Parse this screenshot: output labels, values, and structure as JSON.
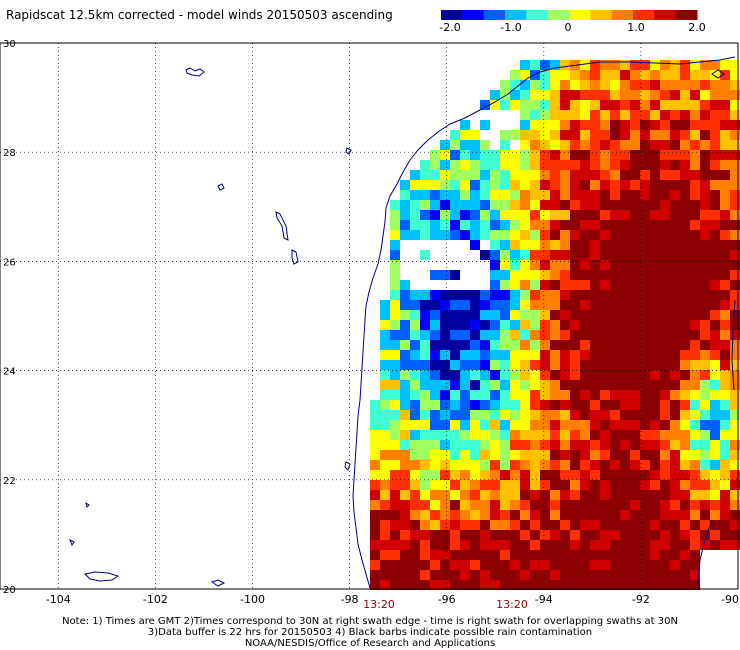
{
  "title": "Rapidscat 12.5km corrected - model winds 20150503 ascending",
  "colorbar": {
    "ticks": [
      "-2.0",
      "-1.0",
      "0",
      "1.0",
      "2.0"
    ],
    "range": [
      -2.0,
      2.0
    ],
    "colors": [
      "#0000a0",
      "#0000ff",
      "#0060ff",
      "#00c0ff",
      "#40ffd0",
      "#a0ff60",
      "#ffff00",
      "#ffc000",
      "#ff8000",
      "#ff3000",
      "#d00000",
      "#8b0000"
    ]
  },
  "map": {
    "lon_ticks": [
      "-104",
      "-102",
      "-100",
      "-98",
      "-96",
      "-94",
      "-92",
      "-90"
    ],
    "lat_ticks": [
      "20",
      "22",
      "24",
      "26",
      "28",
      "30"
    ],
    "coast_color": "#00008b",
    "grid": "dotted"
  },
  "swath_times": [
    "13:20",
    "13:20"
  ],
  "notes": [
    "Note: 1) Times are GMT 2)Times correspond to 30N at right swath edge - time is right swath for overlapping swaths at 30N",
    "3)Data buffer is 22 hrs for 20150503 4) Black barbs indicate possible rain contamination",
    "NOAA/NESDIS/Office of Research and Applications"
  ]
}
